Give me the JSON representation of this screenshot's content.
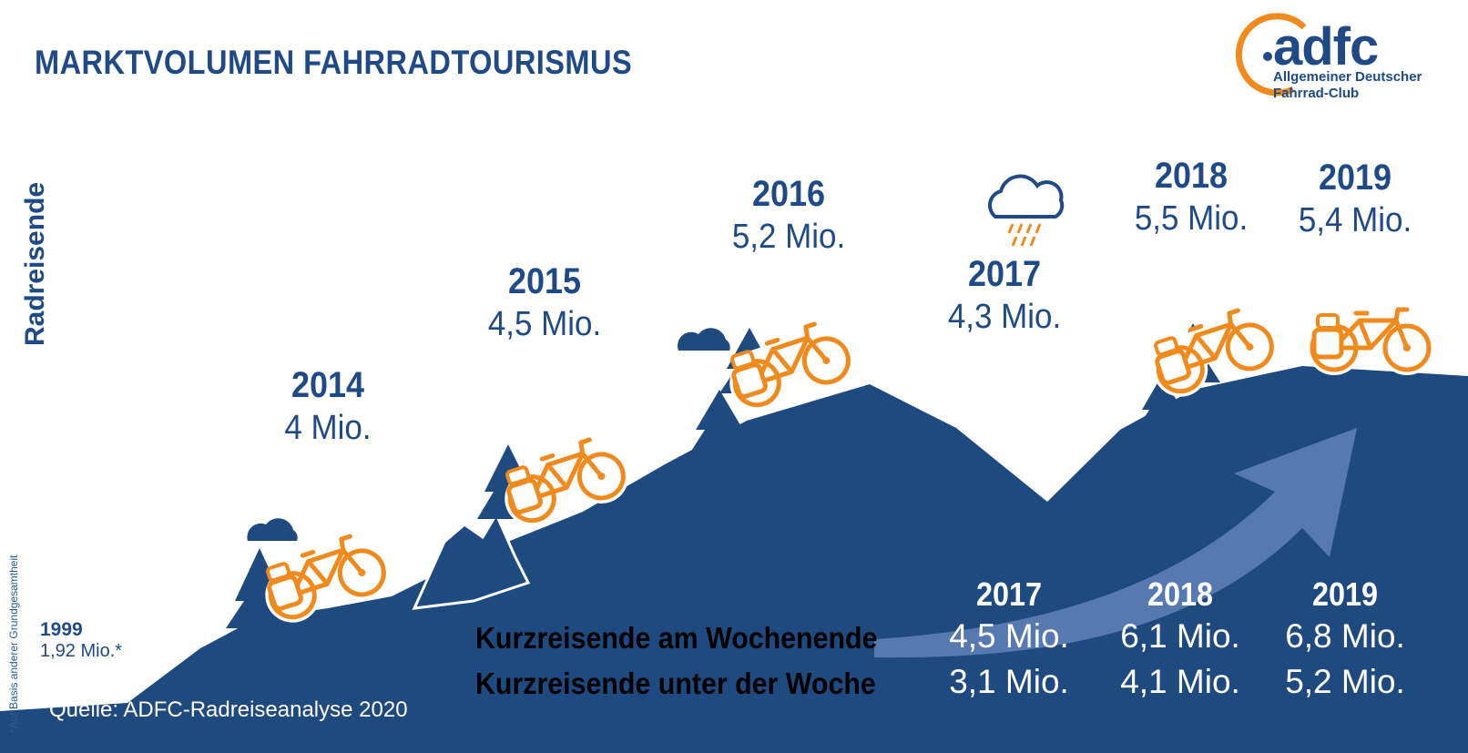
{
  "title": "MARKTVOLUMEN FAHRRADTOURISMUS",
  "logo": {
    "name": "adfc",
    "line1": "Allgemeiner Deutscher",
    "line2": "Fahrrad-Club"
  },
  "colors": {
    "navy": "#1f4a86",
    "mountain": "#1f4a80",
    "orange": "#f08a1c",
    "arrow": "#5b7fb8"
  },
  "source": "Quelle: ADFC-Radreiseanalyse 2020",
  "footnote": "*Auf Basis anderer Grundgesamtheit",
  "chart_data": [
    {
      "type": "area",
      "ylabel": "Radreisende",
      "unit": "Mio.",
      "start": {
        "year": "1999",
        "label": "1,92 Mio.*",
        "value": 1.92
      },
      "points": [
        {
          "year": "2014",
          "label": "4 Mio.",
          "value": 4.0
        },
        {
          "year": "2015",
          "label": "4,5 Mio.",
          "value": 4.5
        },
        {
          "year": "2016",
          "label": "5,2 Mio.",
          "value": 5.2
        },
        {
          "year": "2017",
          "label": "4,3 Mio.",
          "value": 4.3
        },
        {
          "year": "2018",
          "label": "5,5 Mio.",
          "value": 5.5
        },
        {
          "year": "2019",
          "label": "5,4 Mio.",
          "value": 5.4
        }
      ]
    },
    {
      "type": "table",
      "columns": [
        "2017",
        "2018",
        "2019"
      ],
      "rows": [
        {
          "label": "Kurzreisende am Wochenende",
          "values": [
            "4,5 Mio.",
            "6,1 Mio.",
            "6,8 Mio."
          ],
          "numeric": [
            4.5,
            6.1,
            6.8
          ]
        },
        {
          "label": "Kurzreisende unter der Woche",
          "values": [
            "3,1 Mio.",
            "4,1 Mio.",
            "5,2 Mio."
          ],
          "numeric": [
            3.1,
            4.1,
            5.2
          ]
        }
      ]
    }
  ]
}
